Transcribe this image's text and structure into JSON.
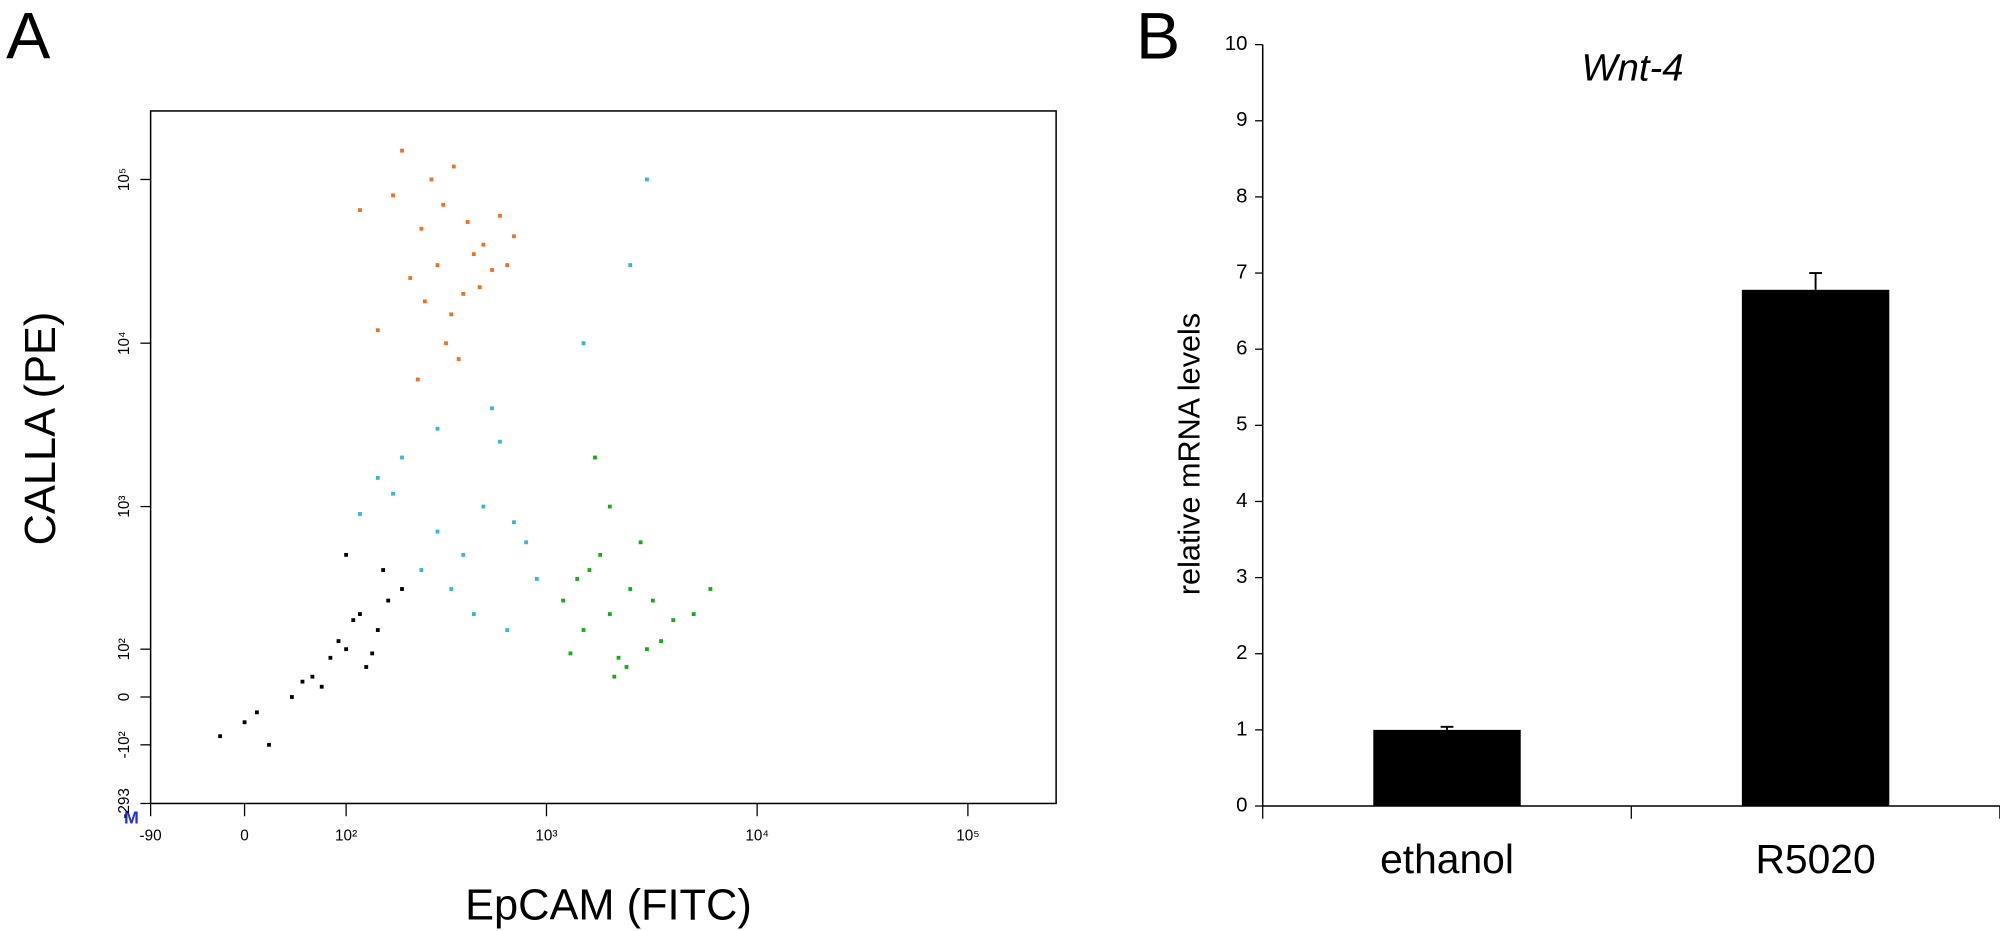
{
  "chart_data": [
    {
      "type": "scatter",
      "panel_label": "A",
      "xlabel": "EpCAM (FITC)",
      "ylabel": "CALLA (PE)",
      "corner_label": "M",
      "xscale": "asinh",
      "yscale": "asinh",
      "xlim": [
        -90,
        262144
      ],
      "ylim": [
        -293,
        262144
      ],
      "xticks": [
        -90,
        0,
        {
          "value": 100,
          "label": "10²"
        },
        {
          "value": 1000,
          "label": "10³"
        },
        {
          "value": 10000,
          "label": "10⁴"
        },
        {
          "value": 100000,
          "label": "10⁵"
        }
      ],
      "yticks": [
        -293,
        {
          "value": -100,
          "label": "-10²"
        },
        0,
        {
          "value": 100,
          "label": "10²"
        },
        {
          "value": 1000,
          "label": "10³"
        },
        {
          "value": 10000,
          "label": "10⁴"
        },
        {
          "value": 100000,
          "label": "10⁵"
        }
      ],
      "series": [
        {
          "color": "#f07020",
          "x": [
            300,
            250,
            400,
            180,
            500,
            350,
            220,
            600,
            280,
            450,
            150,
            700,
            320,
            380,
            260,
            550,
            200,
            420,
            330,
            480,
            120,
            650,
            240,
            360
          ],
          "y": [
            30000,
            50000,
            20000,
            80000,
            40000,
            15000,
            25000,
            60000,
            100000,
            35000,
            12000,
            45000,
            70000,
            8000,
            18000,
            28000,
            150000,
            55000,
            10000,
            22000,
            65000,
            30000,
            6000,
            120000
          ]
        },
        {
          "color": "#30b8e0",
          "x": [
            200,
            300,
            500,
            150,
            400,
            700,
            250,
            600,
            350,
            800,
            450,
            180,
            900,
            550,
            300,
            650,
            1500,
            2500,
            3000,
            120
          ],
          "y": [
            2000,
            3000,
            1000,
            1500,
            500,
            800,
            400,
            2500,
            300,
            600,
            200,
            1200,
            350,
            4000,
            700,
            150,
            10000,
            30000,
            100000,
            900
          ]
        },
        {
          "color": "#10b010",
          "x": [
            2000,
            1500,
            2500,
            3000,
            1800,
            1200,
            4000,
            2200,
            1600,
            2800,
            3500,
            1400,
            5000,
            2000,
            2400,
            1700,
            3200,
            1300,
            6000,
            2100
          ],
          "y": [
            200,
            150,
            300,
            100,
            500,
            250,
            180,
            80,
            400,
            600,
            120,
            350,
            200,
            1000,
            60,
            2000,
            250,
            90,
            300,
            40
          ]
        },
        {
          "color": "#000000",
          "x": [
            100,
            80,
            150,
            60,
            120,
            200,
            40,
            90,
            170,
            0,
            20,
            130,
            70,
            110,
            -20,
            160,
            50,
            140,
            10,
            100
          ],
          "y": [
            100,
            80,
            150,
            40,
            200,
            300,
            0,
            120,
            250,
            -50,
            -100,
            60,
            20,
            180,
            -80,
            400,
            30,
            90,
            -30,
            500
          ]
        }
      ]
    },
    {
      "type": "bar",
      "panel_label": "B",
      "title": "Wnt-4",
      "ylabel": "relative mRNA levels",
      "categories": [
        "ethanol",
        "R5020"
      ],
      "values": [
        1.0,
        6.78
      ],
      "errors": [
        0.04,
        0.22
      ],
      "color": "#000000",
      "ylim": [
        0,
        10
      ],
      "yticks": [
        0,
        1,
        2,
        3,
        4,
        5,
        6,
        7,
        8,
        9,
        10
      ]
    }
  ]
}
